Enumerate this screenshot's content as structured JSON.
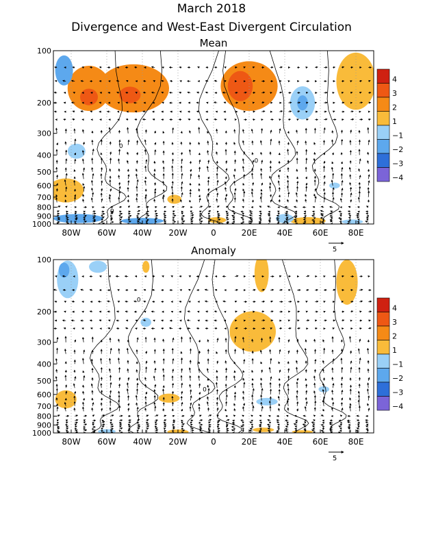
{
  "title": "March 2018",
  "subtitle": "Divergence and West-East Divergent Circulation",
  "colors": {
    "positive": [
      "#ffffff",
      "#f9bb3a",
      "#f58a16",
      "#ee5814",
      "#cf2111"
    ],
    "negative": [
      "#ffffff",
      "#9ad0f7",
      "#5da8ed",
      "#2e6fd9",
      "#7b64d8"
    ],
    "contour": "#000000",
    "arrow": "#000000"
  },
  "colorbar_labels": [
    "4",
    "3",
    "2",
    "1",
    "−1",
    "−2",
    "−3",
    "−4"
  ],
  "chart_data": [
    {
      "type": "heatmap",
      "title": "Mean",
      "x_tick_labels": [
        "80W",
        "60W",
        "40W",
        "20W",
        "0",
        "20E",
        "40E",
        "60E",
        "80E"
      ],
      "x_ticks": [
        -80,
        -60,
        -40,
        -20,
        0,
        20,
        40,
        60,
        80
      ],
      "xlim": [
        -90,
        90
      ],
      "y_tick_labels": [
        "100",
        "200",
        "300",
        "400",
        "500",
        "600",
        "700",
        "800",
        "900",
        "1000"
      ],
      "y_ticks": [
        100,
        200,
        300,
        400,
        500,
        600,
        700,
        800,
        900,
        1000
      ],
      "ylim": [
        1000,
        100
      ],
      "y_scale": "log-pressure",
      "reference_vector_label": "5",
      "contour_labels": [
        {
          "text": "0",
          "lon": -52,
          "p": 355
        },
        {
          "text": "0",
          "lon": 24,
          "p": 430
        },
        {
          "text": "0",
          "lon": -57,
          "p": 840
        }
      ],
      "blobs": [
        {
          "lon": -45,
          "p": 165,
          "rx": 20,
          "ry": 0.32,
          "level": 2
        },
        {
          "lon": -70,
          "p": 165,
          "rx": 12,
          "ry": 0.3,
          "level": 2
        },
        {
          "lon": -70,
          "p": 185,
          "rx": 5,
          "ry": 0.11,
          "level": 3
        },
        {
          "lon": -47,
          "p": 180,
          "rx": 6,
          "ry": 0.11,
          "level": 3
        },
        {
          "lon": 20,
          "p": 160,
          "rx": 16,
          "ry": 0.33,
          "level": 2
        },
        {
          "lon": 15,
          "p": 160,
          "rx": 7,
          "ry": 0.2,
          "level": 3
        },
        {
          "lon": 80,
          "p": 150,
          "rx": 11,
          "ry": 0.38,
          "level": 1
        },
        {
          "lon": -83,
          "p": 640,
          "rx": 10,
          "ry": 0.16,
          "level": 1
        },
        {
          "lon": -22,
          "p": 720,
          "rx": 4,
          "ry": 0.06,
          "level": 1
        },
        {
          "lon": 2,
          "p": 950,
          "rx": 5,
          "ry": 0.04,
          "level": 1
        },
        {
          "lon": 53,
          "p": 960,
          "rx": 10,
          "ry": 0.05,
          "level": 1
        },
        {
          "lon": -84,
          "p": 130,
          "rx": 5,
          "ry": 0.2,
          "level": -2
        },
        {
          "lon": 50,
          "p": 200,
          "rx": 7,
          "ry": 0.22,
          "level": -1
        },
        {
          "lon": 50,
          "p": 200,
          "rx": 3,
          "ry": 0.1,
          "level": -2
        },
        {
          "lon": -77,
          "p": 380,
          "rx": 5,
          "ry": 0.1,
          "level": -1
        },
        {
          "lon": -76,
          "p": 930,
          "rx": 14,
          "ry": 0.06,
          "level": -2
        },
        {
          "lon": -40,
          "p": 960,
          "rx": 12,
          "ry": 0.04,
          "level": -2
        },
        {
          "lon": 40,
          "p": 930,
          "rx": 5,
          "ry": 0.06,
          "level": -1
        },
        {
          "lon": 68,
          "p": 600,
          "rx": 3,
          "ry": 0.04,
          "level": -1
        },
        {
          "lon": 78,
          "p": 970,
          "rx": 6,
          "ry": 0.03,
          "level": -1
        }
      ]
    },
    {
      "type": "heatmap",
      "title": "Anomaly",
      "x_tick_labels": [
        "80W",
        "60W",
        "40W",
        "20W",
        "0",
        "20E",
        "40E",
        "60E",
        "80E"
      ],
      "x_ticks": [
        -80,
        -60,
        -40,
        -20,
        0,
        20,
        40,
        60,
        80
      ],
      "xlim": [
        -90,
        90
      ],
      "y_tick_labels": [
        "100",
        "200",
        "300",
        "400",
        "500",
        "600",
        "700",
        "800",
        "900",
        "1000"
      ],
      "y_ticks": [
        100,
        200,
        300,
        400,
        500,
        600,
        700,
        800,
        900,
        1000
      ],
      "ylim": [
        1000,
        100
      ],
      "y_scale": "log-pressure",
      "reference_vector_label": "5",
      "contour_labels": [
        {
          "text": "0",
          "lon": -42,
          "p": 170
        },
        {
          "text": "0",
          "lon": -5,
          "p": 560
        }
      ],
      "blobs": [
        {
          "lon": -82,
          "p": 130,
          "rx": 6,
          "ry": 0.25,
          "level": -1
        },
        {
          "lon": -84,
          "p": 115,
          "rx": 3,
          "ry": 0.1,
          "level": -2
        },
        {
          "lon": -65,
          "p": 110,
          "rx": 5,
          "ry": 0.08,
          "level": -1
        },
        {
          "lon": -38,
          "p": 230,
          "rx": 3,
          "ry": 0.06,
          "level": -1
        },
        {
          "lon": 30,
          "p": 660,
          "rx": 6,
          "ry": 0.05,
          "level": -1
        },
        {
          "lon": 62,
          "p": 560,
          "rx": 3,
          "ry": 0.04,
          "level": -1
        },
        {
          "lon": -60,
          "p": 980,
          "rx": 5,
          "ry": 0.03,
          "level": -1
        },
        {
          "lon": 22,
          "p": 260,
          "rx": 13,
          "ry": 0.27,
          "level": 1
        },
        {
          "lon": 27,
          "p": 120,
          "rx": 4,
          "ry": 0.25,
          "level": 1
        },
        {
          "lon": 75,
          "p": 135,
          "rx": 6,
          "ry": 0.3,
          "level": 1
        },
        {
          "lon": -83,
          "p": 640,
          "rx": 6,
          "ry": 0.12,
          "level": 1
        },
        {
          "lon": -25,
          "p": 630,
          "rx": 6,
          "ry": 0.06,
          "level": 1
        },
        {
          "lon": -38,
          "p": 110,
          "rx": 2,
          "ry": 0.08,
          "level": 1
        },
        {
          "lon": -20,
          "p": 985,
          "rx": 6,
          "ry": 0.03,
          "level": 1
        },
        {
          "lon": 28,
          "p": 960,
          "rx": 6,
          "ry": 0.03,
          "level": 1
        },
        {
          "lon": 50,
          "p": 985,
          "rx": 6,
          "ry": 0.02,
          "level": 1
        }
      ]
    }
  ]
}
